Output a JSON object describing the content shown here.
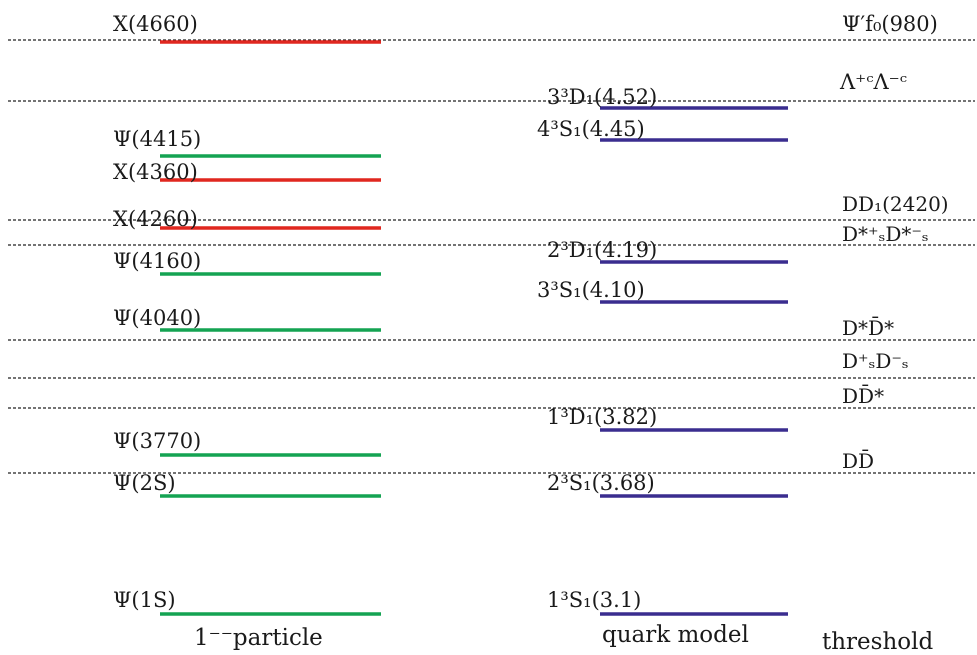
{
  "colors": {
    "exotic": "#e0271f",
    "psi": "#14a352",
    "quark": "#3a2d8f",
    "dashed_line": "#222222",
    "text": "#1a1a1a"
  },
  "footer": {
    "particle": "1⁻⁻particle",
    "quark_model": "quark model",
    "threshold": "threshold"
  },
  "particles": [
    {
      "label": "X(4660)",
      "kind": "exotic"
    },
    {
      "label": "Ψ(4415)",
      "kind": "psi"
    },
    {
      "label": "X(4360)",
      "kind": "exotic"
    },
    {
      "label": "X(4260)",
      "kind": "exotic"
    },
    {
      "label": "Ψ(4160)",
      "kind": "psi"
    },
    {
      "label": "Ψ(4040)",
      "kind": "psi"
    },
    {
      "label": "Ψ(3770)",
      "kind": "psi"
    },
    {
      "label": "Ψ(2S)",
      "kind": "psi"
    },
    {
      "label": "Ψ(1S)",
      "kind": "psi"
    }
  ],
  "quark_model": [
    {
      "label": "3³D₁(4.52)"
    },
    {
      "label": "4³S₁(4.45)"
    },
    {
      "label": "2³D₁(4.19)"
    },
    {
      "label": "3³S₁(4.10)"
    },
    {
      "label": "1³D₁(3.82)"
    },
    {
      "label": "2³S₁(3.68)"
    },
    {
      "label": "1³S₁(3.1)"
    }
  ],
  "thresholds": [
    {
      "label": "Ψ′f₀(980)"
    },
    {
      "label": "Λ⁺ᶜΛ⁻ᶜ"
    },
    {
      "label": "DD₁(2420)"
    },
    {
      "label": "D*⁺ₛD*⁻ₛ"
    },
    {
      "label": "D*D̄*"
    },
    {
      "label": "D⁺ₛD⁻ₛ"
    },
    {
      "label": "DD̄*"
    },
    {
      "label": "DD̄"
    }
  ]
}
